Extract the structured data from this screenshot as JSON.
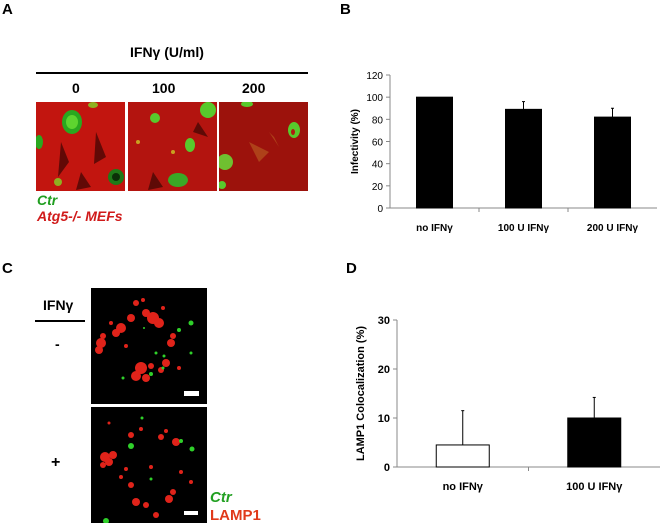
{
  "panels": {
    "A": {
      "letter": "A",
      "header": "IFNγ (U/ml)",
      "columns": [
        "0",
        "100",
        "200"
      ],
      "legend": {
        "ctr": "Ctr",
        "cells": "Atg5-/- MEFs"
      },
      "colors": {
        "green": "#1f9e1f",
        "red": "#d01a1a",
        "bg_red": "#b0130f"
      }
    },
    "B": {
      "letter": "B"
    },
    "C": {
      "letter": "C",
      "header": "IFNγ",
      "rows": [
        "-",
        "+"
      ],
      "legend": {
        "ctr": "Ctr",
        "lamp": "LAMP1"
      },
      "colors": {
        "green": "#22a022",
        "red": "#e03a1a"
      }
    },
    "D": {
      "letter": "D"
    }
  },
  "chart_data": [
    {
      "id": "B",
      "type": "bar",
      "title": "",
      "xlabel": "",
      "ylabel": "Infectivity (%)",
      "categories": [
        "no IFNγ",
        "100 U IFNγ",
        "200 U IFNγ"
      ],
      "values": [
        100,
        89,
        82
      ],
      "error_upper": [
        0,
        7,
        8
      ],
      "bar_colors": [
        "#000000",
        "#000000",
        "#000000"
      ],
      "ylim": [
        0,
        120
      ],
      "yticks": [
        "0",
        "20",
        "40",
        "60",
        "80",
        "100",
        "120"
      ],
      "grid": false,
      "legend": null
    },
    {
      "id": "D",
      "type": "bar",
      "title": "",
      "xlabel": "",
      "ylabel": "LAMP1 Colocalization (%)",
      "categories": [
        "no IFNγ",
        "100 U IFNγ"
      ],
      "values": [
        4.5,
        10
      ],
      "error_upper": [
        7,
        4.2
      ],
      "bar_colors": [
        "#ffffff",
        "#000000"
      ],
      "ylim": [
        0,
        30
      ],
      "yticks": [
        "0",
        "10",
        "20",
        "30"
      ],
      "grid": false,
      "legend": null
    }
  ]
}
